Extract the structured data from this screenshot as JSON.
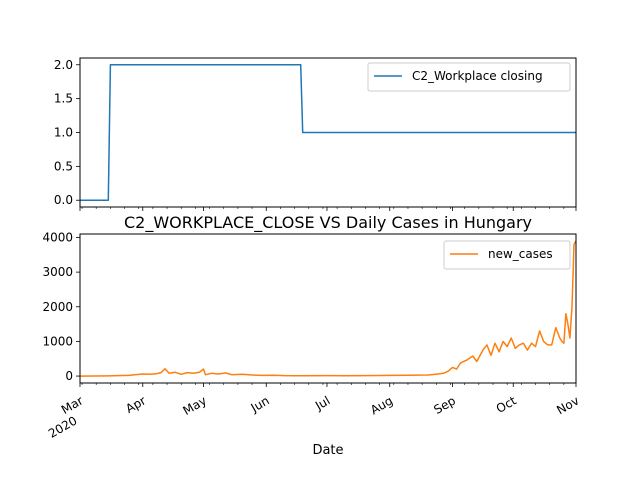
{
  "chart_data": [
    {
      "type": "line",
      "title": "",
      "xlabel": "",
      "ylabel": "",
      "ylim": [
        -0.1,
        2.1
      ],
      "y_ticks": [
        "0.0",
        "0.5",
        "1.0",
        "1.5",
        "2.0"
      ],
      "legend_position": "top-right",
      "grid": false,
      "series": [
        {
          "name": "C2_Workplace closing",
          "color": "#1f77b4",
          "points": [
            [
              "2020-03-01",
              0
            ],
            [
              "2020-03-15",
              0
            ],
            [
              "2020-03-16",
              2
            ],
            [
              "2020-06-18",
              2
            ],
            [
              "2020-06-19",
              1
            ],
            [
              "2020-11-01",
              1
            ]
          ]
        }
      ]
    },
    {
      "type": "line",
      "title": "C2_WORKPLACE_CLOSE VS Daily Cases in Hungary",
      "xlabel": "Date",
      "ylabel": "",
      "ylim": [
        -200,
        4100
      ],
      "y_ticks": [
        "0",
        "1000",
        "2000",
        "3000",
        "4000"
      ],
      "x_ticks": [
        {
          "date": "2020-03-01",
          "label": "Mar",
          "sub": "2020"
        },
        {
          "date": "2020-04-01",
          "label": "Apr"
        },
        {
          "date": "2020-05-01",
          "label": "May"
        },
        {
          "date": "2020-06-01",
          "label": "Jun"
        },
        {
          "date": "2020-07-01",
          "label": "Jul"
        },
        {
          "date": "2020-08-01",
          "label": "Aug"
        },
        {
          "date": "2020-09-01",
          "label": "Sep"
        },
        {
          "date": "2020-10-01",
          "label": "Oct"
        },
        {
          "date": "2020-11-01",
          "label": "Nov"
        }
      ],
      "legend_position": "top-right",
      "grid": false,
      "series": [
        {
          "name": "new_cases",
          "color": "#ff7f0e",
          "points": [
            [
              "2020-03-01",
              0
            ],
            [
              "2020-03-15",
              5
            ],
            [
              "2020-03-25",
              20
            ],
            [
              "2020-03-28",
              40
            ],
            [
              "2020-04-01",
              60
            ],
            [
              "2020-04-05",
              50
            ],
            [
              "2020-04-08",
              70
            ],
            [
              "2020-04-10",
              100
            ],
            [
              "2020-04-12",
              210
            ],
            [
              "2020-04-14",
              80
            ],
            [
              "2020-04-17",
              110
            ],
            [
              "2020-04-20",
              50
            ],
            [
              "2020-04-23",
              100
            ],
            [
              "2020-04-26",
              80
            ],
            [
              "2020-04-29",
              110
            ],
            [
              "2020-05-01",
              200
            ],
            [
              "2020-05-02",
              40
            ],
            [
              "2020-05-05",
              80
            ],
            [
              "2020-05-08",
              60
            ],
            [
              "2020-05-12",
              90
            ],
            [
              "2020-05-15",
              40
            ],
            [
              "2020-05-20",
              50
            ],
            [
              "2020-05-25",
              30
            ],
            [
              "2020-05-30",
              20
            ],
            [
              "2020-06-05",
              25
            ],
            [
              "2020-06-10",
              15
            ],
            [
              "2020-06-15",
              10
            ],
            [
              "2020-06-20",
              10
            ],
            [
              "2020-07-01",
              15
            ],
            [
              "2020-07-10",
              10
            ],
            [
              "2020-07-20",
              15
            ],
            [
              "2020-08-01",
              20
            ],
            [
              "2020-08-10",
              25
            ],
            [
              "2020-08-20",
              30
            ],
            [
              "2020-08-25",
              60
            ],
            [
              "2020-08-28",
              90
            ],
            [
              "2020-08-30",
              150
            ],
            [
              "2020-09-01",
              250
            ],
            [
              "2020-09-03",
              200
            ],
            [
              "2020-09-05",
              380
            ],
            [
              "2020-09-08",
              460
            ],
            [
              "2020-09-11",
              580
            ],
            [
              "2020-09-13",
              420
            ],
            [
              "2020-09-16",
              750
            ],
            [
              "2020-09-18",
              900
            ],
            [
              "2020-09-20",
              600
            ],
            [
              "2020-09-22",
              950
            ],
            [
              "2020-09-24",
              700
            ],
            [
              "2020-09-26",
              1000
            ],
            [
              "2020-09-28",
              850
            ],
            [
              "2020-09-30",
              1100
            ],
            [
              "2020-10-02",
              800
            ],
            [
              "2020-10-04",
              900
            ],
            [
              "2020-10-06",
              950
            ],
            [
              "2020-10-08",
              750
            ],
            [
              "2020-10-10",
              950
            ],
            [
              "2020-10-12",
              850
            ],
            [
              "2020-10-14",
              1300
            ],
            [
              "2020-10-16",
              1000
            ],
            [
              "2020-10-18",
              900
            ],
            [
              "2020-10-20",
              900
            ],
            [
              "2020-10-22",
              1400
            ],
            [
              "2020-10-24",
              1100
            ],
            [
              "2020-10-25",
              1000
            ],
            [
              "2020-10-26",
              950
            ],
            [
              "2020-10-27",
              1800
            ],
            [
              "2020-10-28",
              1500
            ],
            [
              "2020-10-29",
              1100
            ],
            [
              "2020-10-30",
              2000
            ],
            [
              "2020-10-31",
              3800
            ],
            [
              "2020-11-01",
              3900
            ]
          ]
        }
      ]
    }
  ]
}
